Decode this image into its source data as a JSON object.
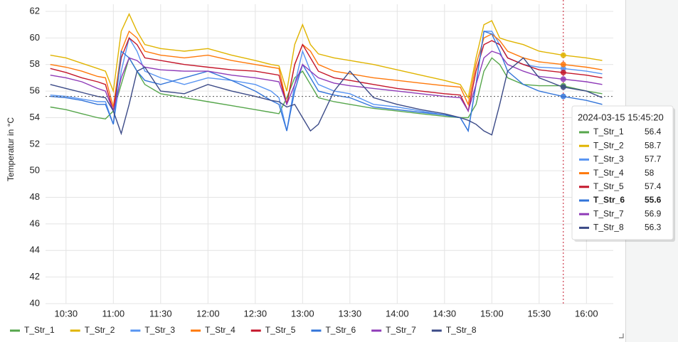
{
  "chart_data": {
    "type": "line",
    "y_label": "Temperatur in °C",
    "x": [
      "10:20",
      "10:30",
      "10:40",
      "10:50",
      "10:55",
      "11:00",
      "11:05",
      "11:10",
      "11:15",
      "11:20",
      "11:30",
      "11:45",
      "12:00",
      "12:15",
      "12:30",
      "12:40",
      "12:45",
      "12:50",
      "12:55",
      "13:00",
      "13:05",
      "13:10",
      "13:20",
      "13:30",
      "13:45",
      "14:00",
      "14:15",
      "14:30",
      "14:40",
      "14:45",
      "14:50",
      "14:55",
      "15:00",
      "15:05",
      "15:10",
      "15:20",
      "15:30",
      "15:45",
      "16:00",
      "16:10"
    ],
    "xlim": [
      "10:17",
      "16:17"
    ],
    "xticks": [
      "10:30",
      "11:00",
      "11:30",
      "12:00",
      "12:30",
      "13:00",
      "13:30",
      "14:00",
      "14:30",
      "15:00",
      "15:30",
      "16:00"
    ],
    "ylim": [
      40,
      62
    ],
    "yticks": [
      40,
      42,
      44,
      46,
      48,
      50,
      52,
      54,
      56,
      58,
      60,
      62
    ],
    "grid": true,
    "legend": "bottom",
    "hover_time": "2024-03-15 15:45:20",
    "series": [
      {
        "name": "T_Str_1",
        "color": "#56a64b",
        "values": [
          54.8,
          54.6,
          54.3,
          54.0,
          53.9,
          54.5,
          56.5,
          58.5,
          57.5,
          56.5,
          55.8,
          55.5,
          55.2,
          54.9,
          54.6,
          54.4,
          54.3,
          55.5,
          57.0,
          57.5,
          56.5,
          55.5,
          55.2,
          55.0,
          54.7,
          54.5,
          54.3,
          54.1,
          54.0,
          54.0,
          55.0,
          57.5,
          58.5,
          58.0,
          57.0,
          56.5,
          56.4,
          56.4,
          56.0,
          55.8
        ]
      },
      {
        "name": "T_Str_2",
        "color": "#e0b400",
        "values": [
          58.7,
          58.5,
          58.1,
          57.7,
          57.5,
          56.0,
          60.5,
          61.8,
          60.5,
          59.5,
          59.2,
          59.0,
          59.2,
          58.7,
          58.3,
          58.0,
          57.9,
          56.0,
          59.5,
          61.0,
          59.5,
          58.8,
          58.5,
          58.3,
          58.0,
          57.6,
          57.2,
          56.8,
          56.5,
          55.5,
          58.5,
          61.0,
          61.3,
          60.0,
          59.8,
          59.5,
          59.0,
          58.7,
          58.5,
          58.3
        ]
      },
      {
        "name": "T_Str_3",
        "color": "#5794f2",
        "values": [
          55.7,
          55.6,
          55.4,
          55.2,
          55.2,
          53.5,
          57.5,
          60.0,
          59.0,
          57.5,
          57.0,
          56.5,
          57.0,
          56.8,
          56.5,
          56.0,
          55.5,
          53.0,
          56.5,
          59.0,
          57.5,
          56.5,
          56.0,
          55.8,
          55.0,
          54.8,
          54.5,
          54.2,
          54.0,
          53.0,
          56.5,
          60.5,
          60.5,
          59.5,
          58.5,
          58.0,
          57.8,
          57.7,
          57.5,
          57.3
        ]
      },
      {
        "name": "T_Str_4",
        "color": "#ff780a",
        "values": [
          58.0,
          57.8,
          57.5,
          57.1,
          57.0,
          54.8,
          59.0,
          60.5,
          60.0,
          59.0,
          58.7,
          58.5,
          58.7,
          58.3,
          58.0,
          57.8,
          57.7,
          55.0,
          58.0,
          59.5,
          59.0,
          58.0,
          57.5,
          57.3,
          57.0,
          56.8,
          56.6,
          56.4,
          56.3,
          55.0,
          58.0,
          60.0,
          60.3,
          59.8,
          59.0,
          58.5,
          58.2,
          58.0,
          57.8,
          57.6
        ]
      },
      {
        "name": "T_Str_5",
        "color": "#c4162a",
        "values": [
          57.7,
          57.4,
          57.0,
          56.7,
          56.5,
          54.5,
          58.5,
          60.0,
          59.5,
          58.5,
          58.3,
          58.0,
          57.8,
          57.6,
          57.5,
          57.3,
          57.2,
          55.0,
          58.0,
          59.5,
          58.5,
          57.5,
          57.0,
          56.8,
          56.5,
          56.2,
          56.0,
          55.8,
          55.7,
          54.5,
          57.5,
          59.5,
          59.8,
          59.5,
          58.5,
          58.0,
          57.6,
          57.4,
          57.2,
          57.0
        ]
      },
      {
        "name": "T_Str_6",
        "color": "#3274d9",
        "values": [
          55.6,
          55.5,
          55.3,
          55.0,
          55.0,
          53.5,
          59.0,
          58.5,
          57.5,
          56.8,
          56.5,
          57.0,
          57.5,
          56.8,
          56.0,
          55.3,
          55.0,
          53.0,
          56.0,
          58.0,
          57.0,
          56.0,
          55.7,
          55.5,
          54.8,
          54.6,
          54.4,
          54.2,
          54.0,
          53.0,
          56.5,
          60.5,
          60.3,
          59.0,
          57.5,
          56.5,
          56.0,
          55.6,
          55.3,
          55.0
        ]
      },
      {
        "name": "T_Str_7",
        "color": "#8f3bb8",
        "values": [
          57.2,
          57.0,
          56.7,
          56.2,
          56.0,
          54.5,
          57.0,
          58.5,
          58.3,
          57.8,
          57.6,
          57.5,
          57.5,
          57.2,
          57.0,
          56.8,
          56.7,
          55.0,
          56.5,
          58.0,
          57.5,
          57.0,
          56.6,
          56.4,
          56.2,
          56.0,
          55.8,
          55.6,
          55.5,
          54.5,
          56.5,
          58.5,
          59.0,
          58.8,
          58.0,
          57.5,
          57.1,
          56.9,
          56.7,
          56.5
        ]
      },
      {
        "name": "T_Str_8",
        "color": "#3b4a87",
        "values": [
          56.5,
          56.2,
          55.9,
          55.6,
          55.5,
          54.5,
          52.8,
          55.0,
          57.5,
          57.8,
          56.0,
          55.8,
          56.5,
          56.0,
          55.6,
          55.3,
          55.2,
          54.8,
          55.0,
          54.0,
          53.0,
          53.5,
          56.0,
          57.5,
          55.5,
          55.0,
          54.6,
          54.3,
          54.0,
          53.8,
          53.5,
          53.0,
          52.7,
          55.0,
          57.5,
          58.5,
          57.0,
          56.3,
          56.0,
          55.5
        ]
      }
    ]
  }
}
